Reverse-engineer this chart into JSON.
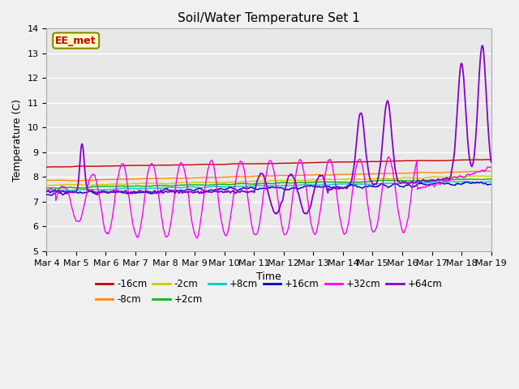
{
  "title": "Soil/Water Temperature Set 1",
  "xlabel": "Time",
  "ylabel": "Temperature (C)",
  "ylim": [
    5.0,
    14.0
  ],
  "yticks": [
    5.0,
    6.0,
    7.0,
    8.0,
    9.0,
    10.0,
    11.0,
    12.0,
    13.0,
    14.0
  ],
  "xtick_labels": [
    "Mar 4",
    "Mar 5",
    "Mar 6",
    "Mar 7",
    "Mar 8",
    "Mar 9",
    "Mar 10",
    "Mar 11",
    "Mar 12",
    "Mar 13",
    "Mar 14",
    "Mar 15",
    "Mar 16",
    "Mar 17",
    "Mar 18",
    "Mar 19"
  ],
  "series_colors": {
    "-16cm": "#cc0000",
    "-8cm": "#ff8800",
    "-2cm": "#cccc00",
    "+2cm": "#00bb00",
    "+8cm": "#00cccc",
    "+16cm": "#0000cc",
    "+32cm": "#ff00ff",
    "+64cm": "#8800cc"
  },
  "watermark_text": "EE_met",
  "watermark_color": "#cc0000",
  "watermark_bg": "#ffffcc",
  "watermark_edge": "#888800",
  "bg_color": "#e8e8e8",
  "grid_color": "#ffffff",
  "fig_bg": "#f0f0f0"
}
